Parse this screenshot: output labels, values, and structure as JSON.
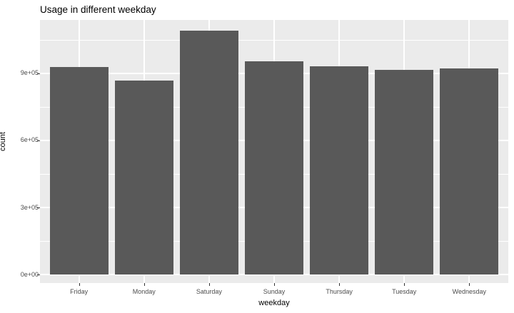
{
  "chart_data": {
    "type": "bar",
    "title": "Usage in different weekday",
    "xlabel": "weekday",
    "ylabel": "count",
    "categories": [
      "Friday",
      "Monday",
      "Saturday",
      "Sunday",
      "Thursday",
      "Tuesday",
      "Wednesday"
    ],
    "values": [
      930000,
      868000,
      1090000,
      954000,
      932000,
      916000,
      922000
    ],
    "ylim": [
      -38000,
      1139000
    ],
    "yticks": [
      {
        "value": 0,
        "label": "0e+00"
      },
      {
        "value": 300000,
        "label": "3e+05"
      },
      {
        "value": 600000,
        "label": "6e+05"
      },
      {
        "value": 900000,
        "label": "9e+05"
      }
    ],
    "y_minor_ticks": [
      150000,
      450000,
      750000,
      1050000
    ],
    "grid": true,
    "legend": "none",
    "colors": {
      "bar": "#595959",
      "panel_background": "#EBEBEB",
      "gridline": "#FFFFFF",
      "tick_label": "#4D4D4D",
      "tick_mark": "#333333",
      "title_text": "#000000"
    }
  }
}
